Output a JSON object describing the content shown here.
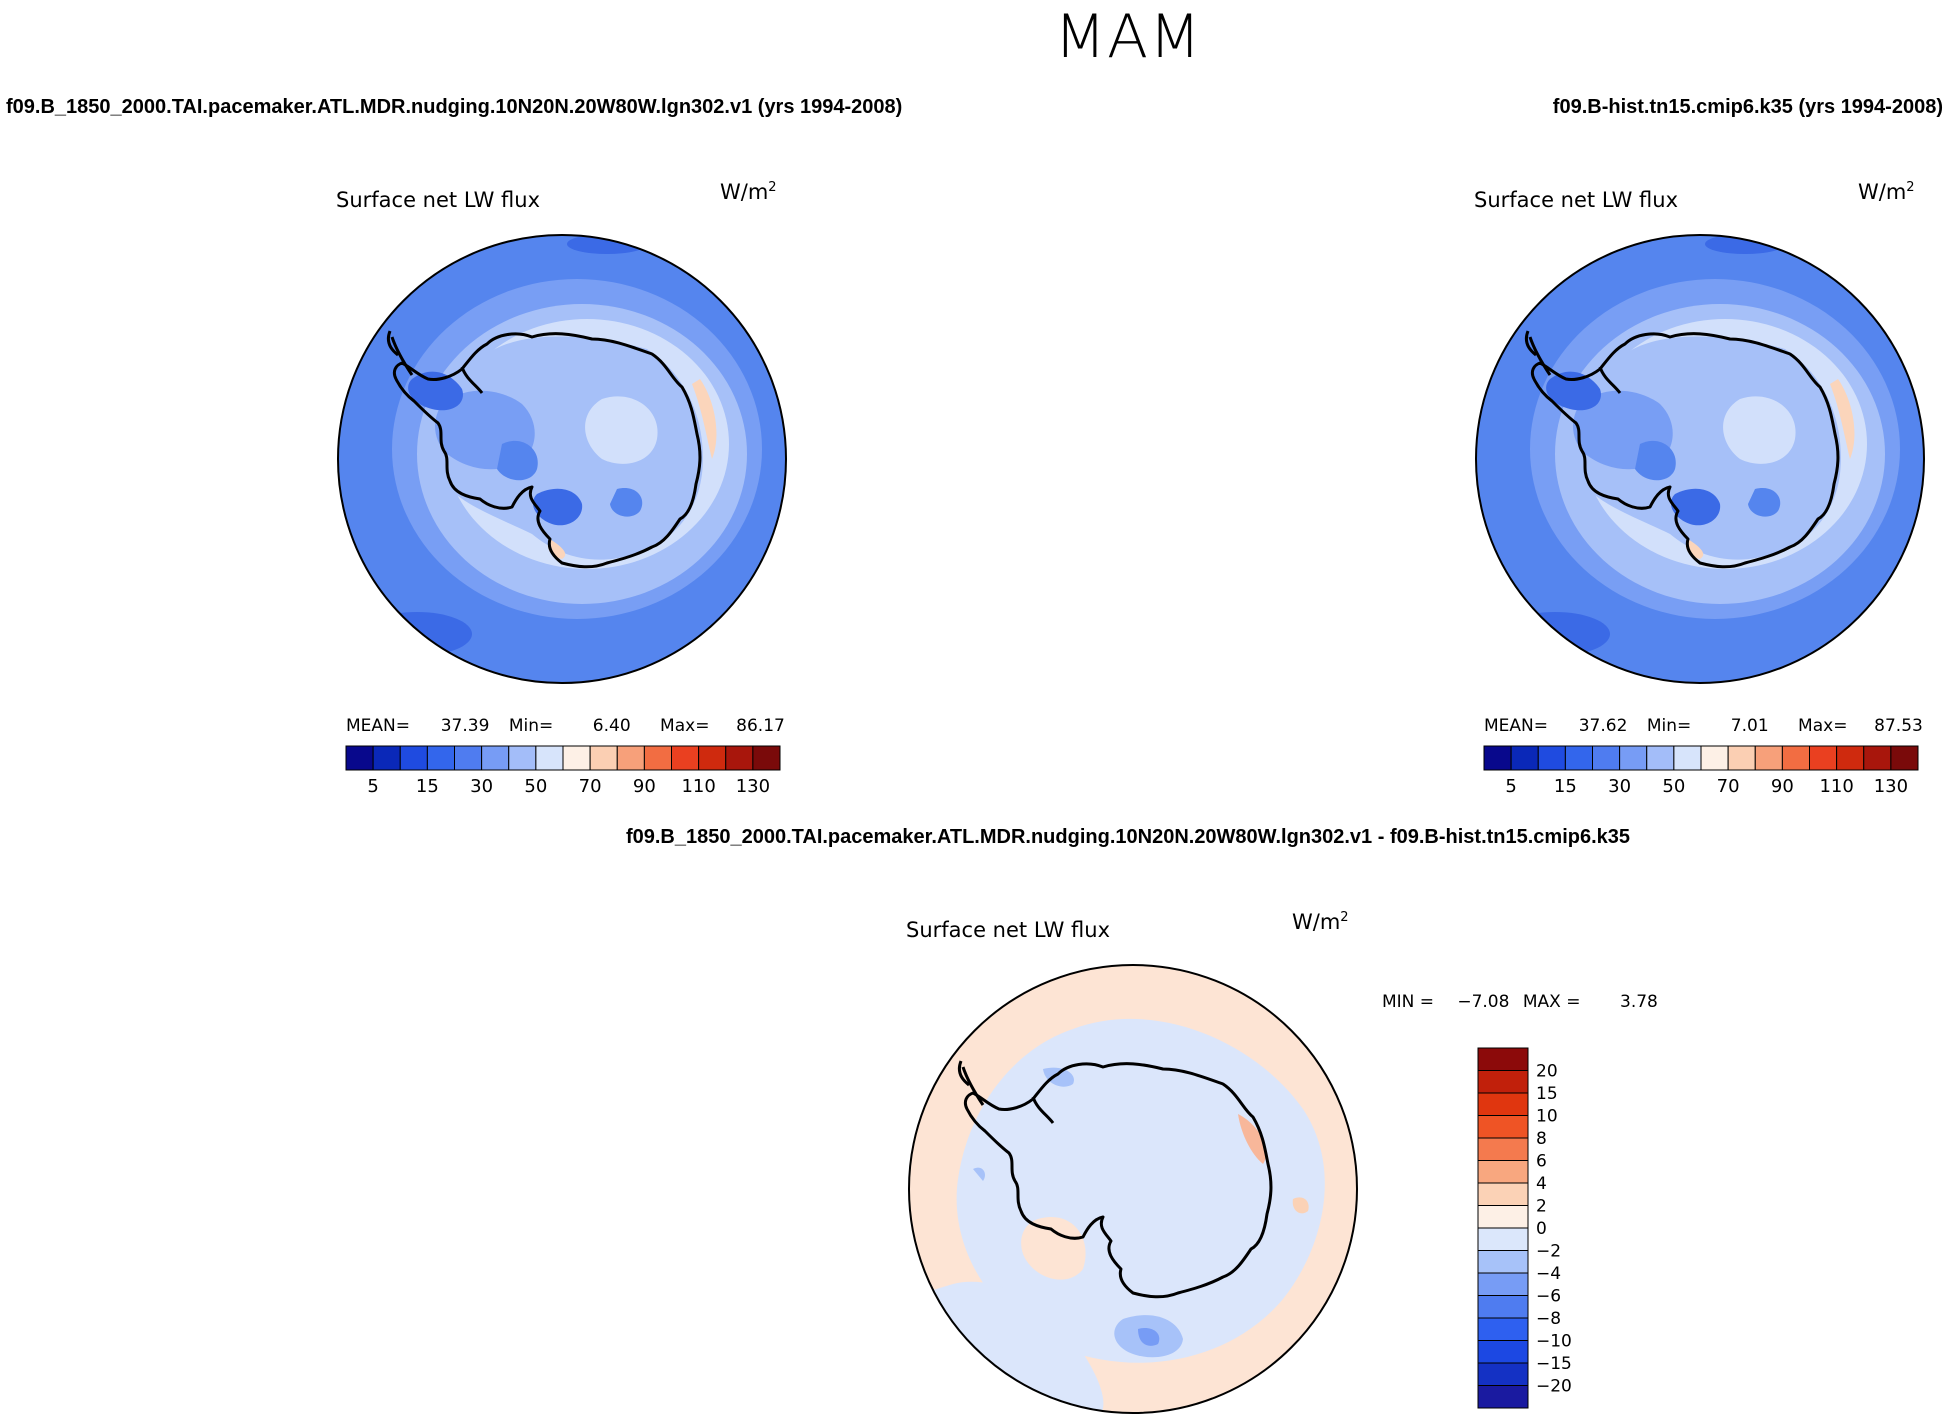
{
  "figure": {
    "title": "MAM",
    "case1_title": "f09.B_1850_2000.TAI.pacemaker.ATL.MDR.nudging.10N20N.20W80W.lgn302.v1 (yrs 1994-2008)",
    "case2_title": "f09.B-hist.tn15.cmip6.k35 (yrs 1994-2008)",
    "diff_title": "f09.B_1850_2000.TAI.pacemaker.ATL.MDR.nudging.10N20N.20W80W.lgn302.v1 - f09.B-hist.tn15.cmip6.k35"
  },
  "panels": {
    "p1": {
      "variable": "Surface net LW flux",
      "units": "W/m",
      "units_exp": "2",
      "mean_label": "MEAN=",
      "mean": "37.39",
      "min_label": "Min=",
      "min": "6.40",
      "max_label": "Max=",
      "max": "86.17"
    },
    "p2": {
      "variable": "Surface net LW flux",
      "units": "W/m",
      "units_exp": "2",
      "mean_label": "MEAN=",
      "mean": "37.62",
      "min_label": "Min=",
      "min": "7.01",
      "max_label": "Max=",
      "max": "87.53"
    },
    "p3": {
      "variable": "Surface net LW flux",
      "units": "W/m",
      "units_exp": "2",
      "min_label": "MIN =",
      "min": "−7.08",
      "max_label": "MAX =",
      "max": "3.78"
    }
  },
  "chart_data": [
    {
      "type": "heatmap",
      "projection": "south-polar-stereographic",
      "title": "Surface net LW flux",
      "units": "W/m2",
      "stats": {
        "mean": 37.39,
        "min": 6.4,
        "max": 86.17
      },
      "colorbar": {
        "levels": [
          5,
          10,
          15,
          20,
          30,
          40,
          50,
          60,
          70,
          80,
          90,
          100,
          110,
          120,
          130
        ],
        "tick_labels": [
          "5",
          "15",
          "30",
          "50",
          "70",
          "90",
          "110",
          "130"
        ],
        "colors": [
          "#08088c",
          "#0a28b8",
          "#1f4be0",
          "#3366ec",
          "#4f7cf0",
          "#779cf5",
          "#a3bdf9",
          "#d7e4fb",
          "#fdf0e6",
          "#fbcfb3",
          "#f7a07a",
          "#f26d42",
          "#ea4020",
          "#cf2a0e",
          "#a8160c",
          "#7a0a0a"
        ]
      }
    },
    {
      "type": "heatmap",
      "projection": "south-polar-stereographic",
      "title": "Surface net LW flux",
      "units": "W/m2",
      "stats": {
        "mean": 37.62,
        "min": 7.01,
        "max": 87.53
      },
      "colorbar": {
        "levels": [
          5,
          10,
          15,
          20,
          30,
          40,
          50,
          60,
          70,
          80,
          90,
          100,
          110,
          120,
          130
        ],
        "tick_labels": [
          "5",
          "15",
          "30",
          "50",
          "70",
          "90",
          "110",
          "130"
        ],
        "colors": [
          "#08088c",
          "#0a28b8",
          "#1f4be0",
          "#3366ec",
          "#4f7cf0",
          "#779cf5",
          "#a3bdf9",
          "#d7e4fb",
          "#fdf0e6",
          "#fbcfb3",
          "#f7a07a",
          "#f26d42",
          "#ea4020",
          "#cf2a0e",
          "#a8160c",
          "#7a0a0a"
        ]
      }
    },
    {
      "type": "heatmap",
      "projection": "south-polar-stereographic",
      "title": "Surface net LW flux",
      "units": "W/m2",
      "stats": {
        "min": -7.08,
        "max": 3.78
      },
      "colorbar": {
        "levels": [
          -20,
          -15,
          -10,
          -8,
          -6,
          -4,
          -2,
          0,
          2,
          4,
          6,
          8,
          10,
          15,
          20
        ],
        "tick_labels": [
          "20",
          "15",
          "10",
          "8",
          "6",
          "4",
          "2",
          "0",
          "−2",
          "−4",
          "−6",
          "−8",
          "−10",
          "−15",
          "−20"
        ],
        "colors": [
          "#1a1aa0",
          "#1431c4",
          "#1c48e3",
          "#2e60f0",
          "#4f7cf0",
          "#779cf5",
          "#a7c2f9",
          "#dbe7fb",
          "#fdf0e6",
          "#fbd2b6",
          "#f8a77f",
          "#f47a4e",
          "#ef5425",
          "#e0360f",
          "#c1200b",
          "#8c0a0a"
        ]
      }
    }
  ]
}
